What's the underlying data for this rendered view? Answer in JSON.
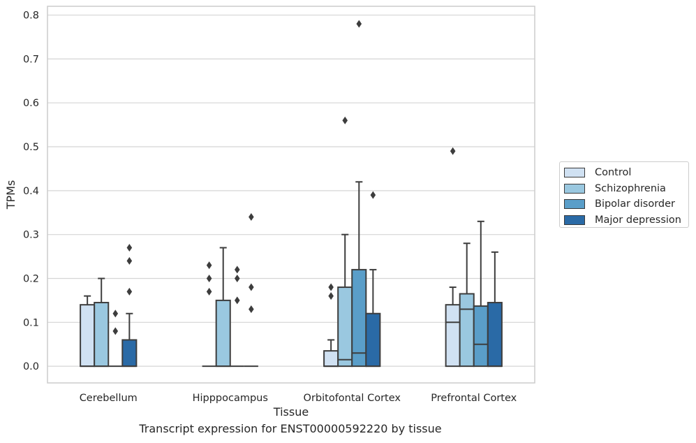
{
  "caption": "Transcript expression for ENST00000592220 by tissue",
  "chart_data": {
    "type": "box",
    "xlabel": "Tissue",
    "ylabel": "TPMs",
    "ylim": [
      -0.038,
      0.82
    ],
    "yticks": [
      0.0,
      0.1,
      0.2,
      0.3,
      0.4,
      0.5,
      0.6,
      0.7,
      0.8
    ],
    "ytick_labels": [
      "0.0",
      "0.1",
      "0.2",
      "0.3",
      "0.4",
      "0.5",
      "0.6",
      "0.7",
      "0.8"
    ],
    "grid": "horizontal",
    "legend_position": "right",
    "categories": [
      "Cerebellum",
      "Hipppocampus",
      "Orbitofontal Cortex",
      "Prefrontal Cortex"
    ],
    "series": [
      {
        "name": "Control",
        "color": "#d0e1f2",
        "boxes": [
          {
            "q1": 0.0,
            "median": 0.0,
            "q3": 0.14,
            "whisker_low": 0.0,
            "whisker_high": 0.16,
            "outliers": []
          },
          {
            "q1": 0.0,
            "median": 0.0,
            "q3": 0.0,
            "whisker_low": 0.0,
            "whisker_high": 0.0,
            "outliers": [
              0.17,
              0.2,
              0.23
            ]
          },
          {
            "q1": 0.0,
            "median": 0.0,
            "q3": 0.035,
            "whisker_low": 0.0,
            "whisker_high": 0.06,
            "outliers": [
              0.16,
              0.18
            ]
          },
          {
            "q1": 0.0,
            "median": 0.1,
            "q3": 0.14,
            "whisker_low": 0.0,
            "whisker_high": 0.18,
            "outliers": [
              0.49
            ]
          }
        ]
      },
      {
        "name": "Schizophrenia",
        "color": "#9ac8e0",
        "boxes": [
          {
            "q1": 0.0,
            "median": 0.0,
            "q3": 0.145,
            "whisker_low": 0.0,
            "whisker_high": 0.2,
            "outliers": []
          },
          {
            "q1": 0.0,
            "median": 0.0,
            "q3": 0.15,
            "whisker_low": 0.0,
            "whisker_high": 0.27,
            "outliers": []
          },
          {
            "q1": 0.0,
            "median": 0.015,
            "q3": 0.18,
            "whisker_low": 0.0,
            "whisker_high": 0.3,
            "outliers": [
              0.56
            ]
          },
          {
            "q1": 0.0,
            "median": 0.13,
            "q3": 0.165,
            "whisker_low": 0.0,
            "whisker_high": 0.28,
            "outliers": []
          }
        ]
      },
      {
        "name": "Bipolar disorder",
        "color": "#5a9ec9",
        "boxes": [
          {
            "q1": 0.0,
            "median": 0.0,
            "q3": 0.0,
            "whisker_low": 0.0,
            "whisker_high": 0.0,
            "outliers": [
              0.08,
              0.12
            ]
          },
          {
            "q1": 0.0,
            "median": 0.0,
            "q3": 0.0,
            "whisker_low": 0.0,
            "whisker_high": 0.0,
            "outliers": [
              0.15,
              0.2,
              0.22
            ]
          },
          {
            "q1": 0.0,
            "median": 0.03,
            "q3": 0.22,
            "whisker_low": 0.0,
            "whisker_high": 0.42,
            "outliers": [
              0.78
            ]
          },
          {
            "q1": 0.0,
            "median": 0.05,
            "q3": 0.137,
            "whisker_low": 0.0,
            "whisker_high": 0.33,
            "outliers": []
          }
        ]
      },
      {
        "name": "Major depression",
        "color": "#2a6aa6",
        "boxes": [
          {
            "q1": 0.0,
            "median": 0.0,
            "q3": 0.06,
            "whisker_low": 0.0,
            "whisker_high": 0.12,
            "outliers": [
              0.17,
              0.24,
              0.27
            ]
          },
          {
            "q1": 0.0,
            "median": 0.0,
            "q3": 0.0,
            "whisker_low": 0.0,
            "whisker_high": 0.0,
            "outliers": [
              0.13,
              0.18,
              0.34
            ]
          },
          {
            "q1": 0.0,
            "median": 0.0,
            "q3": 0.12,
            "whisker_low": 0.0,
            "whisker_high": 0.22,
            "outliers": [
              0.39
            ]
          },
          {
            "q1": 0.0,
            "median": 0.0,
            "q3": 0.145,
            "whisker_low": 0.0,
            "whisker_high": 0.26,
            "outliers": []
          }
        ]
      }
    ]
  }
}
